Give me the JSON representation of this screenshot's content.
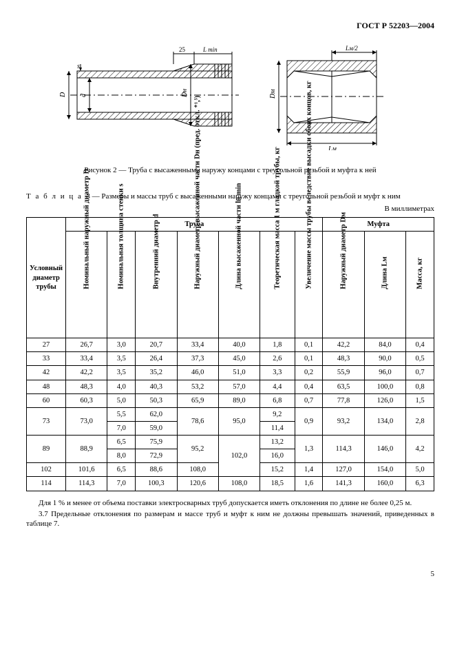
{
  "header": "ГОСТ Р 52203—2004",
  "diagram": {
    "pipe": {
      "labels": {
        "D": "D",
        "d": "d",
        "s": "s",
        "Dn": "Dн",
        "dim25": "25",
        "Lmin": "L min"
      }
    },
    "coupling": {
      "labels": {
        "Dm": "Dм",
        "Lm": "Lм",
        "Lm2": "Lм/2"
      }
    },
    "hatch_stroke": "#000000",
    "line_stroke": "#000000"
  },
  "caption": "Рисунок 2 — Труба с высаженными наружу концами с треугольной резьбой и муфта к ней",
  "table": {
    "title_prefix": "Т а б л и ц а",
    "title_num": "3",
    "title_rest": "— Размеры и массы труб с высаженными наружу концами с треугольной резьбой и муфт к ним",
    "units": "В миллиметрах",
    "head_group_pipe": "Труба",
    "head_group_coupling": "Муфта",
    "columns": {
      "c0": "Условный\nдиаметр\nтрубы",
      "c1": "Номинальный наружный диаметр D",
      "c2": "Номинальная толщина стенки s",
      "c3": "Внутренний диаметр d",
      "c4": "Наружный диаметр высаженной части Dн (пред. откл. ⁺¹,⁵)",
      "c5": "Длина высаженной части lн min",
      "c6": "Теоретическая масса 1 м гладкой трубы, кг",
      "c7": "Увеличение массы трубы вследствие высадки обоих концов, кг",
      "c8": "Наружный диаметр Dм",
      "c9": "Длина Lм",
      "c10": "Масса, кг"
    },
    "rows": [
      {
        "r": [
          "27",
          "26,7",
          "3,0",
          "20,7",
          "33,4",
          "40,0",
          "1,8",
          "0,1",
          "42,2",
          "84,0",
          "0,4"
        ]
      },
      {
        "r": [
          "33",
          "33,4",
          "3,5",
          "26,4",
          "37,3",
          "45,0",
          "2,6",
          "0,1",
          "48,3",
          "90,0",
          "0,5"
        ]
      },
      {
        "r": [
          "42",
          "42,2",
          "3,5",
          "35,2",
          "46,0",
          "51,0",
          "3,3",
          "0,2",
          "55,9",
          "96,0",
          "0,7"
        ]
      },
      {
        "r": [
          "48",
          "48,3",
          "4,0",
          "40,3",
          "53,2",
          "57,0",
          "4,4",
          "0,4",
          "63,5",
          "100,0",
          "0,8"
        ]
      },
      {
        "r": [
          "60",
          "60,3",
          "5,0",
          "50,3",
          "65,9",
          "89,0",
          "6,8",
          "0,7",
          "77,8",
          "126,0",
          "1,5"
        ]
      }
    ],
    "row73": {
      "ud": "73",
      "D": "73,0",
      "s": [
        "5,5",
        "7,0"
      ],
      "d": [
        "62,0",
        "59,0"
      ],
      "Dn": "78,6",
      "ln": "95,0",
      "m": [
        "9,2",
        "11,4"
      ],
      "dmi": "0,9",
      "Dm": "93,2",
      "Lm": "134,0",
      "mass": "2,8"
    },
    "row89": {
      "ud": "89",
      "D": "88,9",
      "s": [
        "6,5",
        "8,0"
      ],
      "d": [
        "75,9",
        "72,9"
      ],
      "Dn": "95,2",
      "ln": "102,0",
      "m": [
        "13,2",
        "16,0"
      ],
      "dmi": "1,3",
      "Dm": "114,3",
      "Lm": "146,0",
      "mass": "4,2"
    },
    "row102": {
      "r": [
        "102",
        "101,6",
        "6,5",
        "88,6",
        "108,0",
        "",
        "15,2",
        "1,4",
        "127,0",
        "154,0",
        "5,0"
      ]
    },
    "row114": {
      "r": [
        "114",
        "114,3",
        "7,0",
        "100,3",
        "120,6",
        "108,0",
        "18,5",
        "1,6",
        "141,3",
        "160,0",
        "6,3"
      ]
    }
  },
  "body": {
    "p1": "Для 1 % и менее от объема поставки электросварных труб допускается иметь отклонения по длине не более 0,25 м.",
    "p2": "3.7  Предельные отклонения по размерам и массе труб и муфт к ним не должны превышать значений, приведенных в таблице 7."
  },
  "page_num": "5"
}
